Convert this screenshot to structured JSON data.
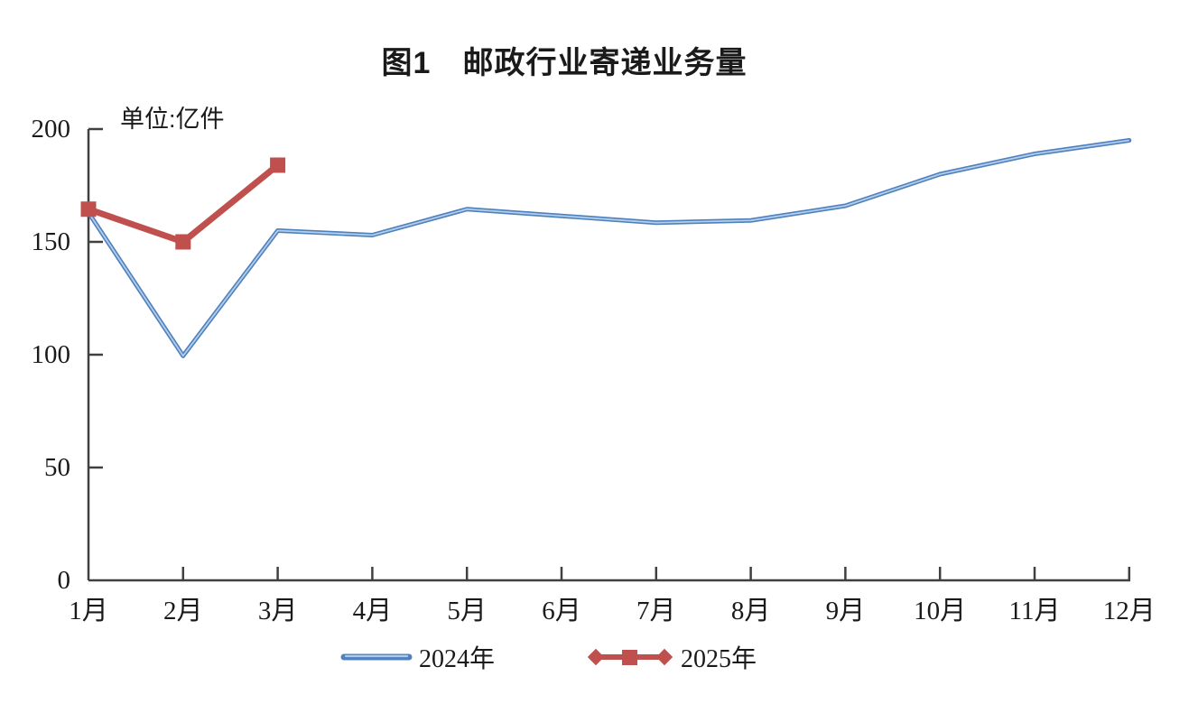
{
  "title": "图1　邮政行业寄递业务量",
  "unit_label": "单位:亿件",
  "chart_data": {
    "type": "line",
    "title": "图1　邮政行业寄递业务量",
    "unit": "亿件",
    "categories": [
      "1月",
      "2月",
      "3月",
      "4月",
      "5月",
      "6月",
      "7月",
      "8月",
      "9月",
      "10月",
      "11月",
      "12月"
    ],
    "series": [
      {
        "name": "2024年",
        "color": "#4f81bd",
        "highlight_color": "#b8d2ee",
        "marker": "none",
        "values": [
          163,
          99.5,
          155,
          153,
          164.5,
          161.5,
          158.5,
          159.5,
          166,
          180,
          189,
          195
        ]
      },
      {
        "name": "2025年",
        "color": "#c0504d",
        "highlight_color": "#c0504d",
        "marker": "square",
        "values": [
          164.5,
          150,
          184
        ]
      }
    ],
    "ylim": [
      0,
      200
    ],
    "yticks": [
      0,
      50,
      100,
      150,
      200
    ],
    "grid": false,
    "legend_position": "bottom",
    "axis_color": "#404040"
  }
}
